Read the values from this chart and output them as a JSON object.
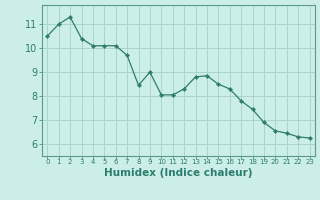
{
  "x": [
    0,
    1,
    2,
    3,
    4,
    5,
    6,
    7,
    8,
    9,
    10,
    11,
    12,
    13,
    14,
    15,
    16,
    17,
    18,
    19,
    20,
    21,
    22,
    23
  ],
  "y": [
    10.5,
    11.0,
    11.3,
    10.4,
    10.1,
    10.1,
    10.1,
    9.7,
    8.45,
    9.0,
    8.05,
    8.05,
    8.3,
    8.8,
    8.85,
    8.5,
    8.3,
    7.8,
    7.45,
    6.9,
    6.55,
    6.45,
    6.3,
    6.25
  ],
  "line_color": "#2d7d6e",
  "marker": "D",
  "marker_size": 2.2,
  "background_color": "#cceee8",
  "grid_color": "#aad4cc",
  "xlabel": "Humidex (Indice chaleur)",
  "ylim": [
    5.5,
    11.8
  ],
  "xlim": [
    -0.5,
    23.5
  ],
  "yticks": [
    6,
    7,
    8,
    9,
    10,
    11
  ],
  "xticks": [
    0,
    1,
    2,
    3,
    4,
    5,
    6,
    7,
    8,
    9,
    10,
    11,
    12,
    13,
    14,
    15,
    16,
    17,
    18,
    19,
    20,
    21,
    22,
    23
  ],
  "tick_color": "#2d7d6e",
  "label_color": "#2d7d6e",
  "spine_color": "#5a9a8a",
  "xlabel_fontsize": 7.5,
  "ytick_fontsize": 7.0,
  "xtick_fontsize": 5.0
}
